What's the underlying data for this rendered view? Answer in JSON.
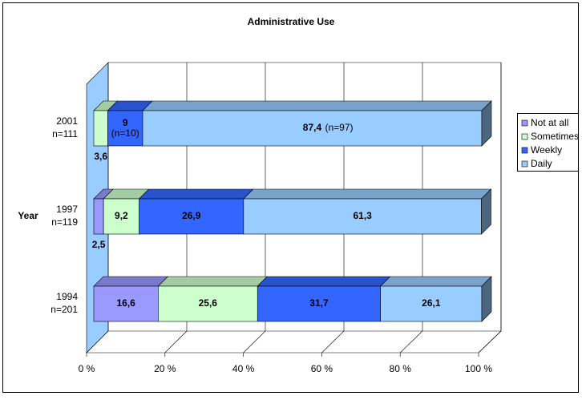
{
  "chart_data": {
    "type": "bar3d_stacked_horizontal",
    "title": "Administrative Use",
    "y_axis_label": "Year",
    "categories": [
      "2001",
      "1997",
      "1994"
    ],
    "category_sublabels": [
      "n=111",
      "n=119",
      "n=201"
    ],
    "series": [
      {
        "name": "Not at all",
        "color": "#9999ff",
        "values": [
          0,
          2.5,
          16.6
        ],
        "value_labels": [
          null,
          "2,5",
          "16,6"
        ]
      },
      {
        "name": "Sometimes",
        "color": "#ccffcc",
        "values": [
          3.6,
          9.2,
          25.6
        ],
        "value_labels": [
          "3,6",
          "9,2",
          "25,6"
        ]
      },
      {
        "name": "Weekly",
        "color": "#3366ff",
        "values": [
          9,
          26.9,
          31.7
        ],
        "value_labels": [
          "9",
          "26,9",
          "31,7"
        ],
        "value_notes": [
          "(n=10)",
          null,
          null
        ]
      },
      {
        "name": "Daily",
        "color": "#99ccff",
        "values": [
          87.4,
          61.3,
          26.1
        ],
        "value_labels": [
          "87,4",
          "61,3",
          "26,1"
        ],
        "value_notes": [
          "(n=97)",
          null,
          null
        ]
      }
    ],
    "xlim": [
      0,
      100
    ],
    "xticks": [
      {
        "value": 0,
        "label": "0 %"
      },
      {
        "value": 20,
        "label": "20 %"
      },
      {
        "value": 40,
        "label": "40 %"
      },
      {
        "value": 60,
        "label": "60 %"
      },
      {
        "value": 80,
        "label": "80 %"
      },
      {
        "value": 100,
        "label": "100 %"
      }
    ],
    "grid": true,
    "legend": "right"
  }
}
